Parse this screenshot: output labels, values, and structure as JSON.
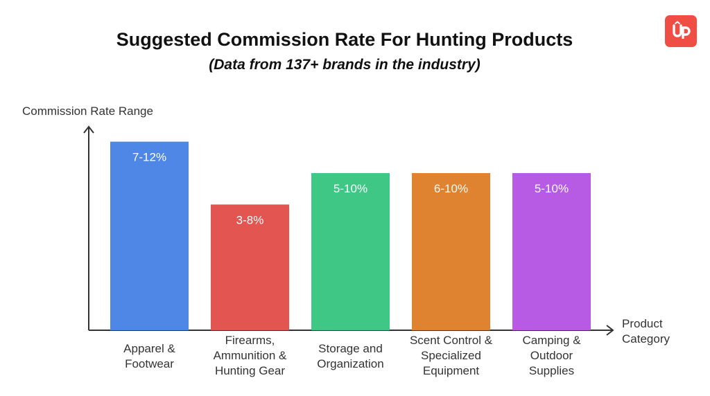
{
  "chart_data": {
    "type": "bar",
    "title": "Suggested Commission Rate For Hunting Products",
    "subtitle": "(Data from 137+ brands in the industry)",
    "ylabel": "Commission Rate Range",
    "xlabel": [
      "Product",
      "Category"
    ],
    "categories": [
      [
        "Apparel &",
        "Footwear"
      ],
      [
        "Firearms,",
        "Ammunition &",
        "Hunting Gear"
      ],
      [
        "Storage and",
        "Organization"
      ],
      [
        "Scent Control &",
        "Specialized",
        "Equipment"
      ],
      [
        "Camping &",
        "Outdoor",
        "Supplies"
      ]
    ],
    "series": [
      {
        "data_labels": [
          "7-12%",
          "3-8%",
          "5-10%",
          "6-10%",
          "5-10%"
        ],
        "values": [
          12,
          8,
          10,
          10,
          10
        ],
        "colors": [
          "#4f87e6",
          "#e25551",
          "#3fc785",
          "#e08331",
          "#b75be5"
        ]
      }
    ],
    "ylim": [
      0,
      12.6
    ],
    "grid": false,
    "legend": "none"
  },
  "logo": {
    "icon": "up-logo-icon",
    "glyph": "Ûp",
    "color": "#f04e45"
  }
}
